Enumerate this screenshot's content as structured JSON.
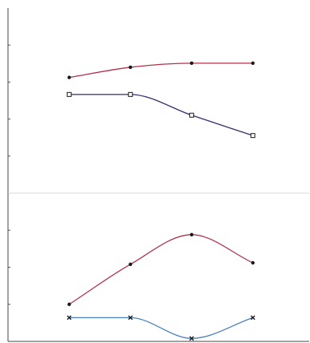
{
  "colors": {
    "background": "#ffffff",
    "axis": "#444444",
    "tick": "#555555",
    "divider": "#d8d8d8",
    "red_series": "#b2324a",
    "navy_series": "#2f2f6e",
    "blue_series": "#4a7fc0",
    "marker_dark": "#1a1a1a"
  },
  "chart_data": [
    {
      "type": "line",
      "title": "",
      "xlabel": "",
      "ylabel": "",
      "x": [
        1,
        2,
        3,
        4
      ],
      "xlim": [
        0,
        4.92
      ],
      "ylim": [
        0,
        1
      ],
      "grid": false,
      "legend": "none",
      "yticks": [
        0.2,
        0.4,
        0.6,
        0.8
      ],
      "series": [
        {
          "values": [
            0.625,
            0.68,
            0.702,
            0.702
          ],
          "color": "red_series",
          "marker": "dot"
        },
        {
          "values": [
            0.533,
            0.533,
            0.421,
            0.311
          ],
          "color": "navy_series",
          "marker": "open-square"
        }
      ]
    },
    {
      "type": "line",
      "title": "",
      "xlabel": "",
      "ylabel": "",
      "x": [
        1,
        2,
        3,
        4
      ],
      "xlim": [
        0,
        4.92
      ],
      "ylim": [
        0,
        1
      ],
      "grid": false,
      "legend": "none",
      "yticks": [
        0.25,
        0.5,
        0.75
      ],
      "series": [
        {
          "values": [
            0.25,
            0.52,
            0.72,
            0.53
          ],
          "color": "red_series",
          "marker": "dot"
        },
        {
          "values": [
            0.16,
            0.16,
            0.02,
            0.16
          ],
          "color": "blue_series",
          "marker": "x"
        }
      ]
    }
  ]
}
